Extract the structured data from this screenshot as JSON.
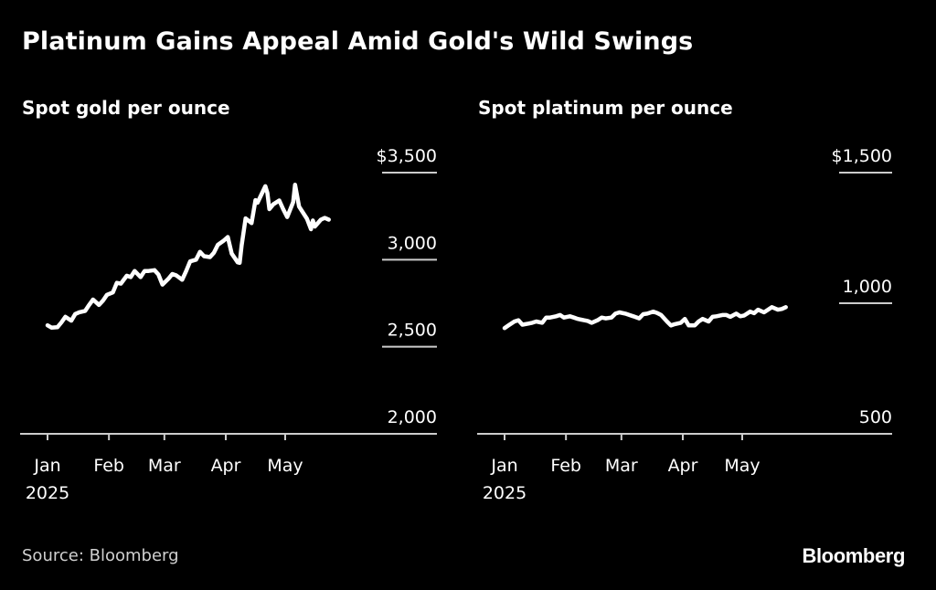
{
  "page": {
    "title": "Platinum Gains Appeal Amid Gold's Wild Swings",
    "source": "Source: Bloomberg",
    "brand": "Bloomberg"
  },
  "colors": {
    "background": "#000000",
    "line": "#ffffff",
    "text": "#ffffff",
    "muted": "#d0d0d0",
    "axis": "#cccccc"
  },
  "chart_data": [
    {
      "type": "line",
      "title": "Spot gold per ounce",
      "xlabel": "",
      "ylabel": "",
      "ylim": [
        2000,
        3500
      ],
      "yticks": [
        2000,
        2500,
        3000,
        3500
      ],
      "ytick_labels": [
        "2,000",
        "2,500",
        "3,000",
        "$3,500"
      ],
      "xlim": [
        "2025-01-01",
        "2025-06-06"
      ],
      "x_ticks": [
        "2025-01-01",
        "2025-02-01",
        "2025-03-01",
        "2025-04-01",
        "2025-05-01"
      ],
      "x_tick_labels": [
        "Jan",
        "Feb",
        "Mar",
        "Apr",
        "May"
      ],
      "x_tick_sublabel": "2025",
      "grid": false,
      "series": [
        {
          "x": [
            "2025-01-01",
            "2025-01-03",
            "2025-01-06",
            "2025-01-08",
            "2025-01-10",
            "2025-01-13",
            "2025-01-15",
            "2025-01-17",
            "2025-01-20",
            "2025-01-22",
            "2025-01-24",
            "2025-01-27",
            "2025-01-29",
            "2025-01-31",
            "2025-02-03",
            "2025-02-05",
            "2025-02-07",
            "2025-02-10",
            "2025-02-12",
            "2025-02-14",
            "2025-02-17",
            "2025-02-19",
            "2025-02-21",
            "2025-02-24",
            "2025-02-26",
            "2025-02-28",
            "2025-03-03",
            "2025-03-05",
            "2025-03-07",
            "2025-03-10",
            "2025-03-12",
            "2025-03-14",
            "2025-03-17",
            "2025-03-19",
            "2025-03-21",
            "2025-03-24",
            "2025-03-26",
            "2025-03-28",
            "2025-03-31",
            "2025-04-02",
            "2025-04-04",
            "2025-04-07",
            "2025-04-08",
            "2025-04-09",
            "2025-04-11",
            "2025-04-14",
            "2025-04-16",
            "2025-04-17",
            "2025-04-21",
            "2025-04-22",
            "2025-04-23",
            "2025-04-25",
            "2025-04-28",
            "2025-04-30",
            "2025-05-02",
            "2025-05-05",
            "2025-05-06",
            "2025-05-08",
            "2025-05-12",
            "2025-05-14",
            "2025-05-15",
            "2025-05-16",
            "2025-05-19",
            "2025-05-21",
            "2025-05-23"
          ],
          "values": [
            2623,
            2610,
            2612,
            2640,
            2672,
            2650,
            2688,
            2698,
            2706,
            2740,
            2771,
            2740,
            2765,
            2798,
            2812,
            2867,
            2862,
            2908,
            2900,
            2935,
            2900,
            2935,
            2935,
            2940,
            2915,
            2857,
            2890,
            2918,
            2910,
            2885,
            2935,
            2990,
            3000,
            3045,
            3020,
            3015,
            3040,
            3085,
            3110,
            3130,
            3035,
            2985,
            2982,
            3080,
            3237,
            3210,
            3342,
            3327,
            3422,
            3384,
            3290,
            3318,
            3340,
            3290,
            3245,
            3330,
            3430,
            3305,
            3235,
            3175,
            3225,
            3190,
            3230,
            3240,
            3230
          ]
        }
      ]
    },
    {
      "type": "line",
      "title": "Spot platinum per ounce",
      "xlabel": "",
      "ylabel": "",
      "ylim": [
        500,
        1500
      ],
      "yticks": [
        500,
        1000,
        1500
      ],
      "ytick_labels": [
        "500",
        "1,000",
        "$1,500"
      ],
      "xlim": [
        "2025-01-01",
        "2025-06-06"
      ],
      "x_ticks": [
        "2025-01-01",
        "2025-02-01",
        "2025-03-01",
        "2025-04-01",
        "2025-05-01"
      ],
      "x_tick_labels": [
        "Jan",
        "Feb",
        "Mar",
        "Apr",
        "May"
      ],
      "x_tick_sublabel": "2025",
      "grid": false,
      "series": [
        {
          "x": [
            "2025-01-01",
            "2025-01-03",
            "2025-01-06",
            "2025-01-08",
            "2025-01-10",
            "2025-01-13",
            "2025-01-15",
            "2025-01-17",
            "2025-01-20",
            "2025-01-22",
            "2025-01-24",
            "2025-01-27",
            "2025-01-29",
            "2025-01-31",
            "2025-02-03",
            "2025-02-05",
            "2025-02-07",
            "2025-02-10",
            "2025-02-12",
            "2025-02-14",
            "2025-02-17",
            "2025-02-19",
            "2025-02-21",
            "2025-02-24",
            "2025-02-26",
            "2025-02-28",
            "2025-03-03",
            "2025-03-05",
            "2025-03-07",
            "2025-03-10",
            "2025-03-12",
            "2025-03-14",
            "2025-03-17",
            "2025-03-19",
            "2025-03-21",
            "2025-03-24",
            "2025-03-26",
            "2025-03-28",
            "2025-03-31",
            "2025-04-02",
            "2025-04-04",
            "2025-04-07",
            "2025-04-09",
            "2025-04-11",
            "2025-04-14",
            "2025-04-16",
            "2025-04-18",
            "2025-04-21",
            "2025-04-23",
            "2025-04-25",
            "2025-04-28",
            "2025-04-30",
            "2025-05-02",
            "2025-05-05",
            "2025-05-07",
            "2025-05-09",
            "2025-05-12",
            "2025-05-14",
            "2025-05-16",
            "2025-05-19",
            "2025-05-21",
            "2025-05-23"
          ],
          "values": [
            905,
            915,
            930,
            935,
            918,
            922,
            925,
            930,
            925,
            945,
            945,
            950,
            955,
            945,
            950,
            945,
            940,
            935,
            932,
            925,
            935,
            945,
            942,
            945,
            960,
            965,
            960,
            955,
            950,
            942,
            958,
            960,
            968,
            963,
            955,
            930,
            915,
            920,
            925,
            940,
            915,
            915,
            930,
            940,
            930,
            948,
            950,
            955,
            955,
            948,
            960,
            950,
            953,
            968,
            962,
            975,
            965,
            975,
            985,
            975,
            978,
            985
          ]
        }
      ]
    }
  ]
}
